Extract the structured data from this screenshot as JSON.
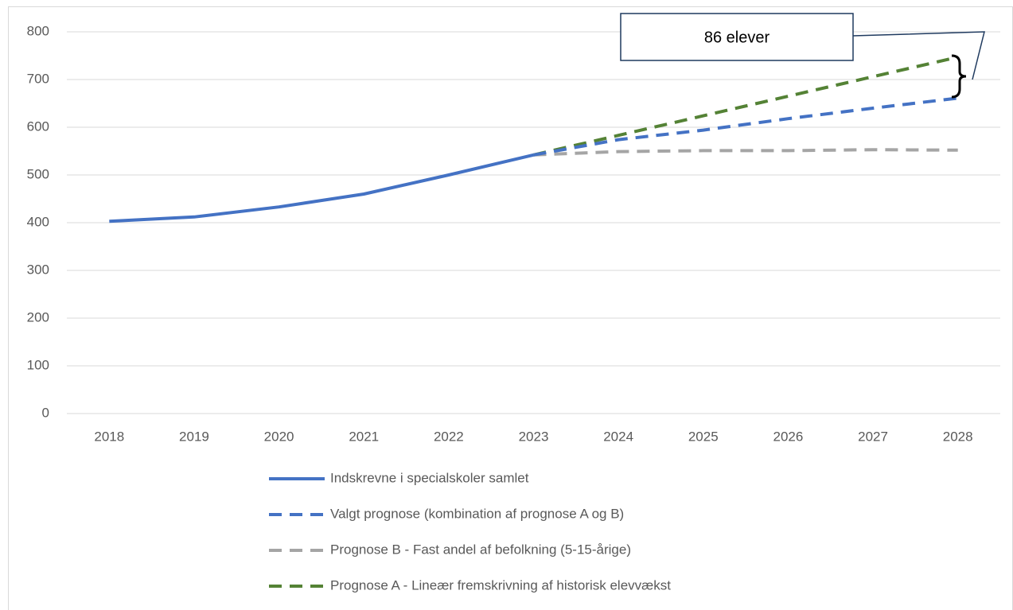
{
  "chart_data": {
    "type": "line",
    "categories": [
      "2018",
      "2019",
      "2020",
      "2021",
      "2022",
      "2023",
      "2024",
      "2025",
      "2026",
      "2027",
      "2028"
    ],
    "series": [
      {
        "name": "Indskrevne i specialskoler samlet",
        "color": "#4472c4",
        "dashed": false,
        "values": [
          403,
          412,
          433,
          460,
          500,
          542,
          null,
          null,
          null,
          null,
          null
        ]
      },
      {
        "name": "Valgt prognose (kombination af prognose A og B)",
        "color": "#4472c4",
        "dashed": true,
        "values": [
          null,
          null,
          null,
          null,
          null,
          542,
          574,
          594,
          618,
          640,
          661
        ]
      },
      {
        "name": "Prognose B - Fast andel af befolkning (5-15-årige)",
        "color": "#a5a5a5",
        "dashed": true,
        "values": [
          null,
          null,
          null,
          null,
          null,
          542,
          549,
          551,
          551,
          553,
          552
        ]
      },
      {
        "name": "Prognose A - Lineær fremskrivning af historisk elevvækst",
        "color": "#548235",
        "dashed": true,
        "values": [
          null,
          null,
          null,
          null,
          null,
          542,
          583,
          624,
          665,
          706,
          747
        ]
      }
    ],
    "ylim": [
      0,
      800
    ],
    "yticks": [
      0,
      100,
      200,
      300,
      400,
      500,
      600,
      700,
      800
    ],
    "grid": true,
    "annotation": "86 elever"
  }
}
